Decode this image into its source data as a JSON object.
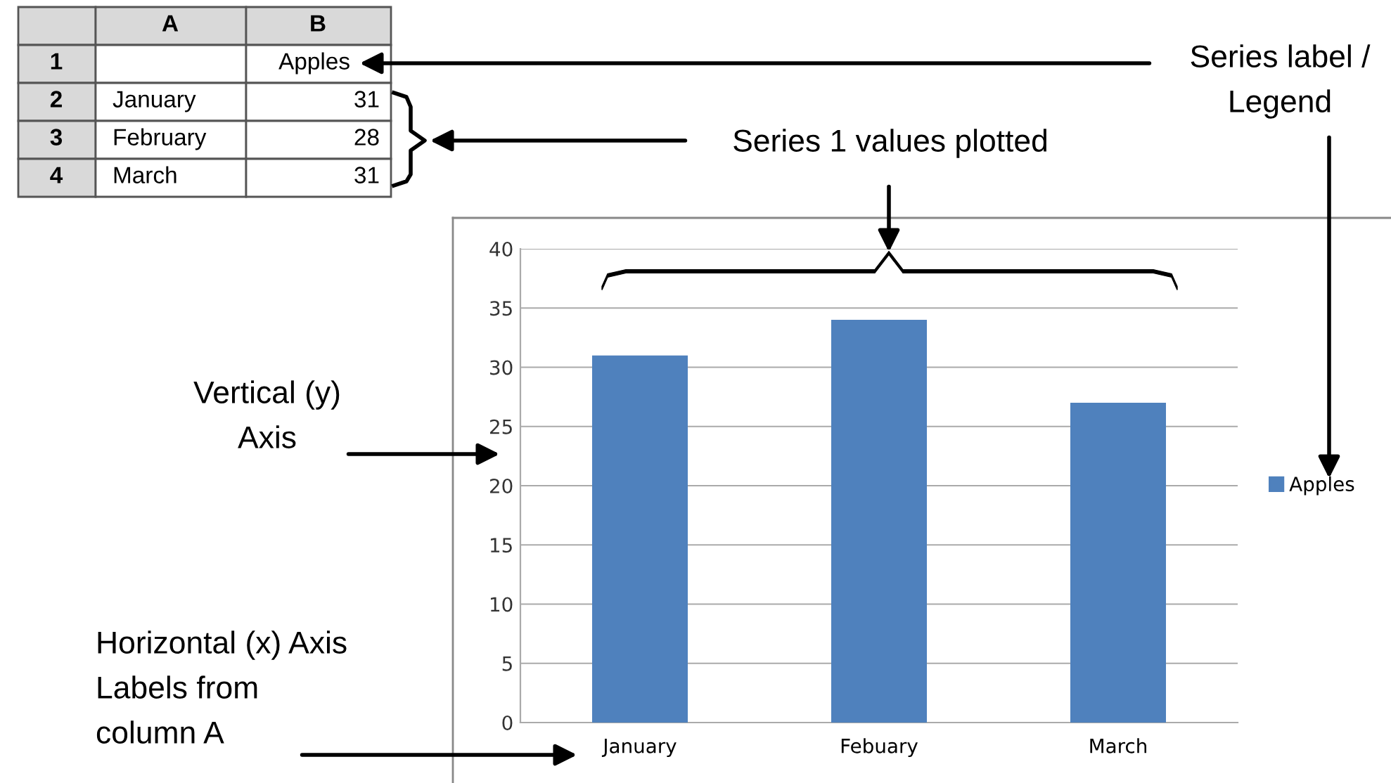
{
  "chart_data": {
    "type": "bar",
    "categories": [
      "January",
      "Febuary",
      "March"
    ],
    "series": [
      {
        "name": "Apples",
        "color": "#4f81bd",
        "values": [
          31,
          34,
          27
        ]
      }
    ],
    "ylim": [
      0,
      40
    ],
    "yticks": [
      0,
      5,
      10,
      15,
      20,
      25,
      30,
      35,
      40
    ],
    "grid": "y",
    "legend": "right",
    "annotations": [
      "Series label /\nLegend",
      "Series 1 values plotted",
      "Vertical (y)\nAxis",
      "Horizontal (x) Axis\nLabels from\ncolumn A",
      "A",
      "B",
      "1",
      "Apples",
      "2",
      "January",
      "31",
      "3",
      "February",
      "28",
      "4",
      "March",
      "31"
    ]
  }
}
